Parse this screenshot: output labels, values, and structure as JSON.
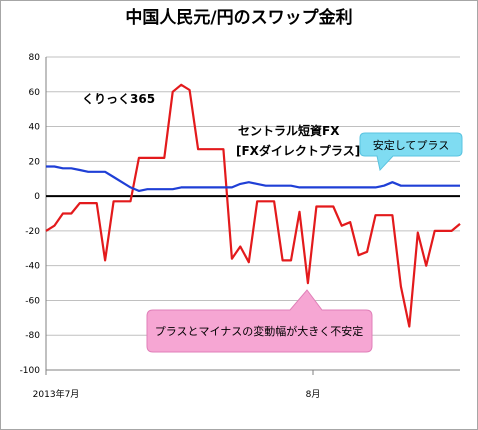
{
  "chart_data": {
    "type": "line",
    "title": "中国人民元/円のスワップ金利",
    "ylim": [
      -100,
      80
    ],
    "ytick_step": 20,
    "grid": true,
    "x_tick_labels": [
      "2013年7月",
      "8月"
    ],
    "series": [
      {
        "name": "くりっく365",
        "color": "#e31a1c",
        "values": [
          -20,
          -17,
          -10,
          -10,
          -4,
          -4,
          -4,
          -37,
          -3,
          -3,
          -3,
          22,
          22,
          22,
          22,
          60,
          64,
          61,
          27,
          27,
          27,
          27,
          -36,
          -29,
          -38,
          -3,
          -3,
          -3,
          -37,
          -37,
          -9,
          -50,
          -6,
          -6,
          -6,
          -17,
          -15,
          -34,
          -32,
          -11,
          -11,
          -11,
          -52,
          -75,
          -21,
          -40,
          -20,
          -20,
          -20,
          -16
        ]
      },
      {
        "name": "セントラル短資FX\n[FXダイレクトプラス]",
        "color": "#1f3fd6",
        "values": [
          17,
          17,
          16,
          16,
          15,
          14,
          14,
          14,
          11,
          8,
          5,
          3,
          4,
          4,
          4,
          4,
          5,
          5,
          5,
          5,
          5,
          5,
          5,
          7,
          8,
          7,
          6,
          6,
          6,
          6,
          5,
          5,
          5,
          5,
          5,
          5,
          5,
          5,
          5,
          5,
          6,
          8,
          6,
          6,
          6,
          6,
          6,
          6,
          6,
          6
        ]
      }
    ],
    "annotations": {
      "stable": "安定してプラス",
      "unstable": "プラスとマイナスの変動幅が大きく不安定"
    },
    "labels": {
      "kurikku": "くりっく365",
      "central_line1": "セントラル短資FX",
      "central_line2": "[FXダイレクトプラス]"
    }
  },
  "colors": {
    "gridline": "#c0c0c0",
    "axis": "#000000",
    "callout_cyan": "#7fdcf2",
    "callout_pink": "#f6a6d3"
  }
}
